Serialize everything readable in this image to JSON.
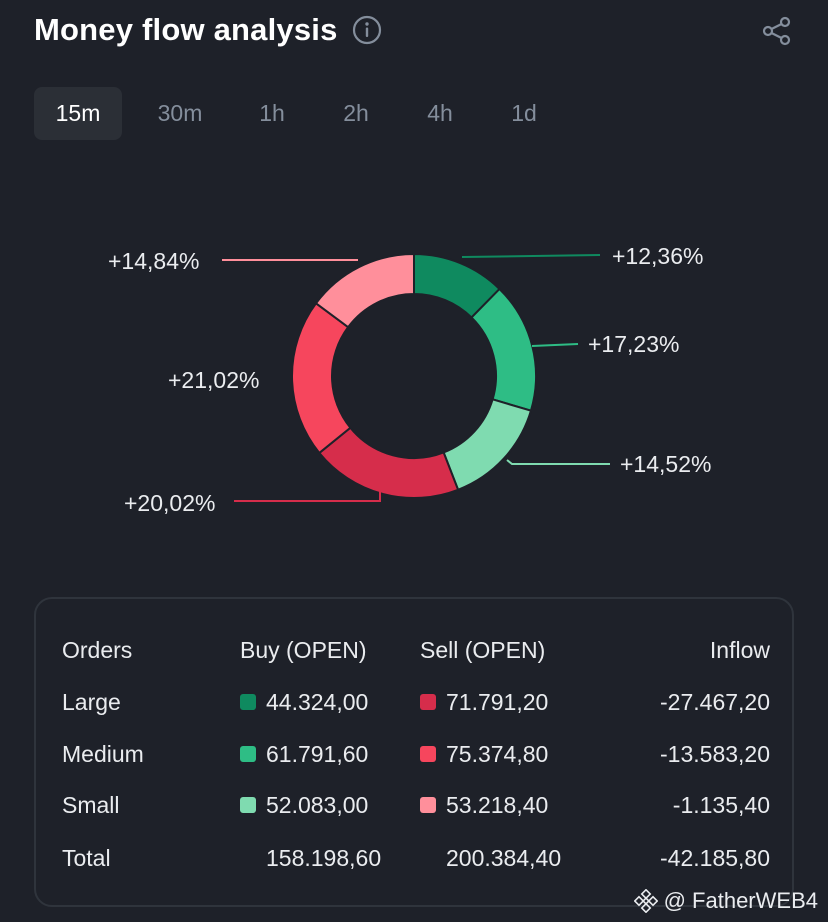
{
  "header": {
    "title": "Money flow analysis",
    "info_icon": "info-circle-icon",
    "share_icon": "share-icon"
  },
  "tabs": [
    {
      "label": "15m",
      "active": true
    },
    {
      "label": "30m",
      "active": false
    },
    {
      "label": "1h",
      "active": false
    },
    {
      "label": "2h",
      "active": false
    },
    {
      "label": "4h",
      "active": false
    },
    {
      "label": "1d",
      "active": false
    }
  ],
  "donut": {
    "segments": [
      {
        "label": "+12,36%",
        "value": 12.36,
        "color": "#0f8a5f"
      },
      {
        "label": "+17,23%",
        "value": 17.23,
        "color": "#2ebd85"
      },
      {
        "label": "+14,52%",
        "value": 14.52,
        "color": "#7fdbb0"
      },
      {
        "label": "+20,02%",
        "value": 20.02,
        "color": "#d62d4b"
      },
      {
        "label": "+21,02%",
        "value": 21.02,
        "color": "#f6465d"
      },
      {
        "label": "+14,84%",
        "value": 14.84,
        "color": "#ff8f9b"
      }
    ]
  },
  "table": {
    "headers": {
      "orders": "Orders",
      "buy": "Buy (OPEN)",
      "sell": "Sell (OPEN)",
      "inflow": "Inflow"
    },
    "rows": [
      {
        "orders": "Large",
        "buy": "44.324,00",
        "sell": "71.791,20",
        "inflow": "-27.467,20",
        "buy_color": "#0f8a5f",
        "sell_color": "#d62d4b"
      },
      {
        "orders": "Medium",
        "buy": "61.791,60",
        "sell": "75.374,80",
        "inflow": "-13.583,20",
        "buy_color": "#2ebd85",
        "sell_color": "#f6465d"
      },
      {
        "orders": "Small",
        "buy": "52.083,00",
        "sell": "53.218,40",
        "inflow": "-1.135,40",
        "buy_color": "#7fdbb0",
        "sell_color": "#ff8f9b"
      }
    ],
    "total": {
      "orders": "Total",
      "buy": "158.198,60",
      "sell": "200.384,40",
      "inflow": "-42.185,80"
    }
  },
  "watermark": {
    "text": "@ FatherWEB4",
    "logo": "binance-logo-icon"
  }
}
